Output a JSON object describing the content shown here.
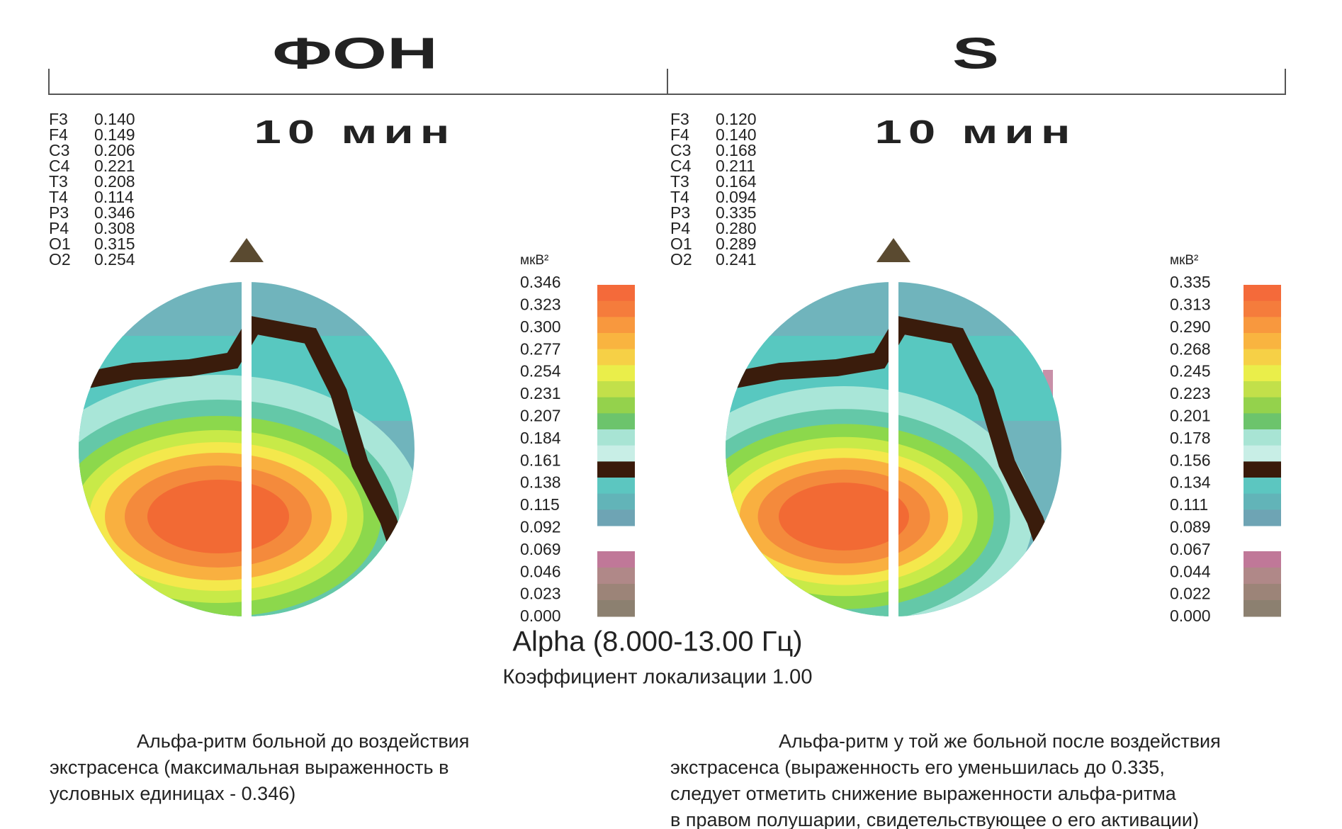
{
  "panels": [
    {
      "header": "ФОН",
      "subtitle": "10 мин",
      "electrodes": [
        {
          "label": "F3",
          "value": "0.140"
        },
        {
          "label": "F4",
          "value": "0.149"
        },
        {
          "label": "C3",
          "value": "0.206"
        },
        {
          "label": "C4",
          "value": "0.221"
        },
        {
          "label": "T3",
          "value": "0.208"
        },
        {
          "label": "T4",
          "value": "0.114"
        },
        {
          "label": "P3",
          "value": "0.346"
        },
        {
          "label": "P4",
          "value": "0.308"
        },
        {
          "label": "O1",
          "value": "0.315"
        },
        {
          "label": "O2",
          "value": "0.254"
        }
      ],
      "scale": {
        "unit": "мкВ²",
        "ticks": [
          "0.346",
          "0.323",
          "0.300",
          "0.277",
          "0.254",
          "0.231",
          "0.207",
          "0.184",
          "0.161",
          "0.138",
          "0.115",
          "0.092",
          "0.069",
          "0.046",
          "0.023",
          "0.000"
        ]
      },
      "caption": [
        "Альфа-ритм больной до воздействия",
        "экстрасенса (максимальная выраженность в",
        "условных единицах - 0.346)"
      ]
    },
    {
      "header": "S",
      "subtitle": "10 мин",
      "electrodes": [
        {
          "label": "F3",
          "value": "0.120"
        },
        {
          "label": "F4",
          "value": "0.140"
        },
        {
          "label": "C3",
          "value": "0.168"
        },
        {
          "label": "C4",
          "value": "0.211"
        },
        {
          "label": "T3",
          "value": "0.164"
        },
        {
          "label": "T4",
          "value": "0.094"
        },
        {
          "label": "P3",
          "value": "0.335"
        },
        {
          "label": "P4",
          "value": "0.280"
        },
        {
          "label": "O1",
          "value": "0.289"
        },
        {
          "label": "O2",
          "value": "0.241"
        }
      ],
      "scale": {
        "unit": "мкВ²",
        "ticks": [
          "0.335",
          "0.313",
          "0.290",
          "0.268",
          "0.245",
          "0.223",
          "0.201",
          "0.178",
          "0.156",
          "0.134",
          "0.111",
          "0.089",
          "0.067",
          "0.044",
          "0.022",
          "0.000"
        ]
      },
      "caption": [
        "Альфа-ритм у той же больной после воздействия",
        "экстрасенса (выраженность его уменьшилась до 0.335,",
        "следует отметить снижение выраженности альфа-ритма",
        "в правом полушарии, свидетельствующее о его активации)"
      ]
    }
  ],
  "band": "Alpha (8.000-13.00 Гц)",
  "localization": "Коэффициент локализации 1.00"
}
